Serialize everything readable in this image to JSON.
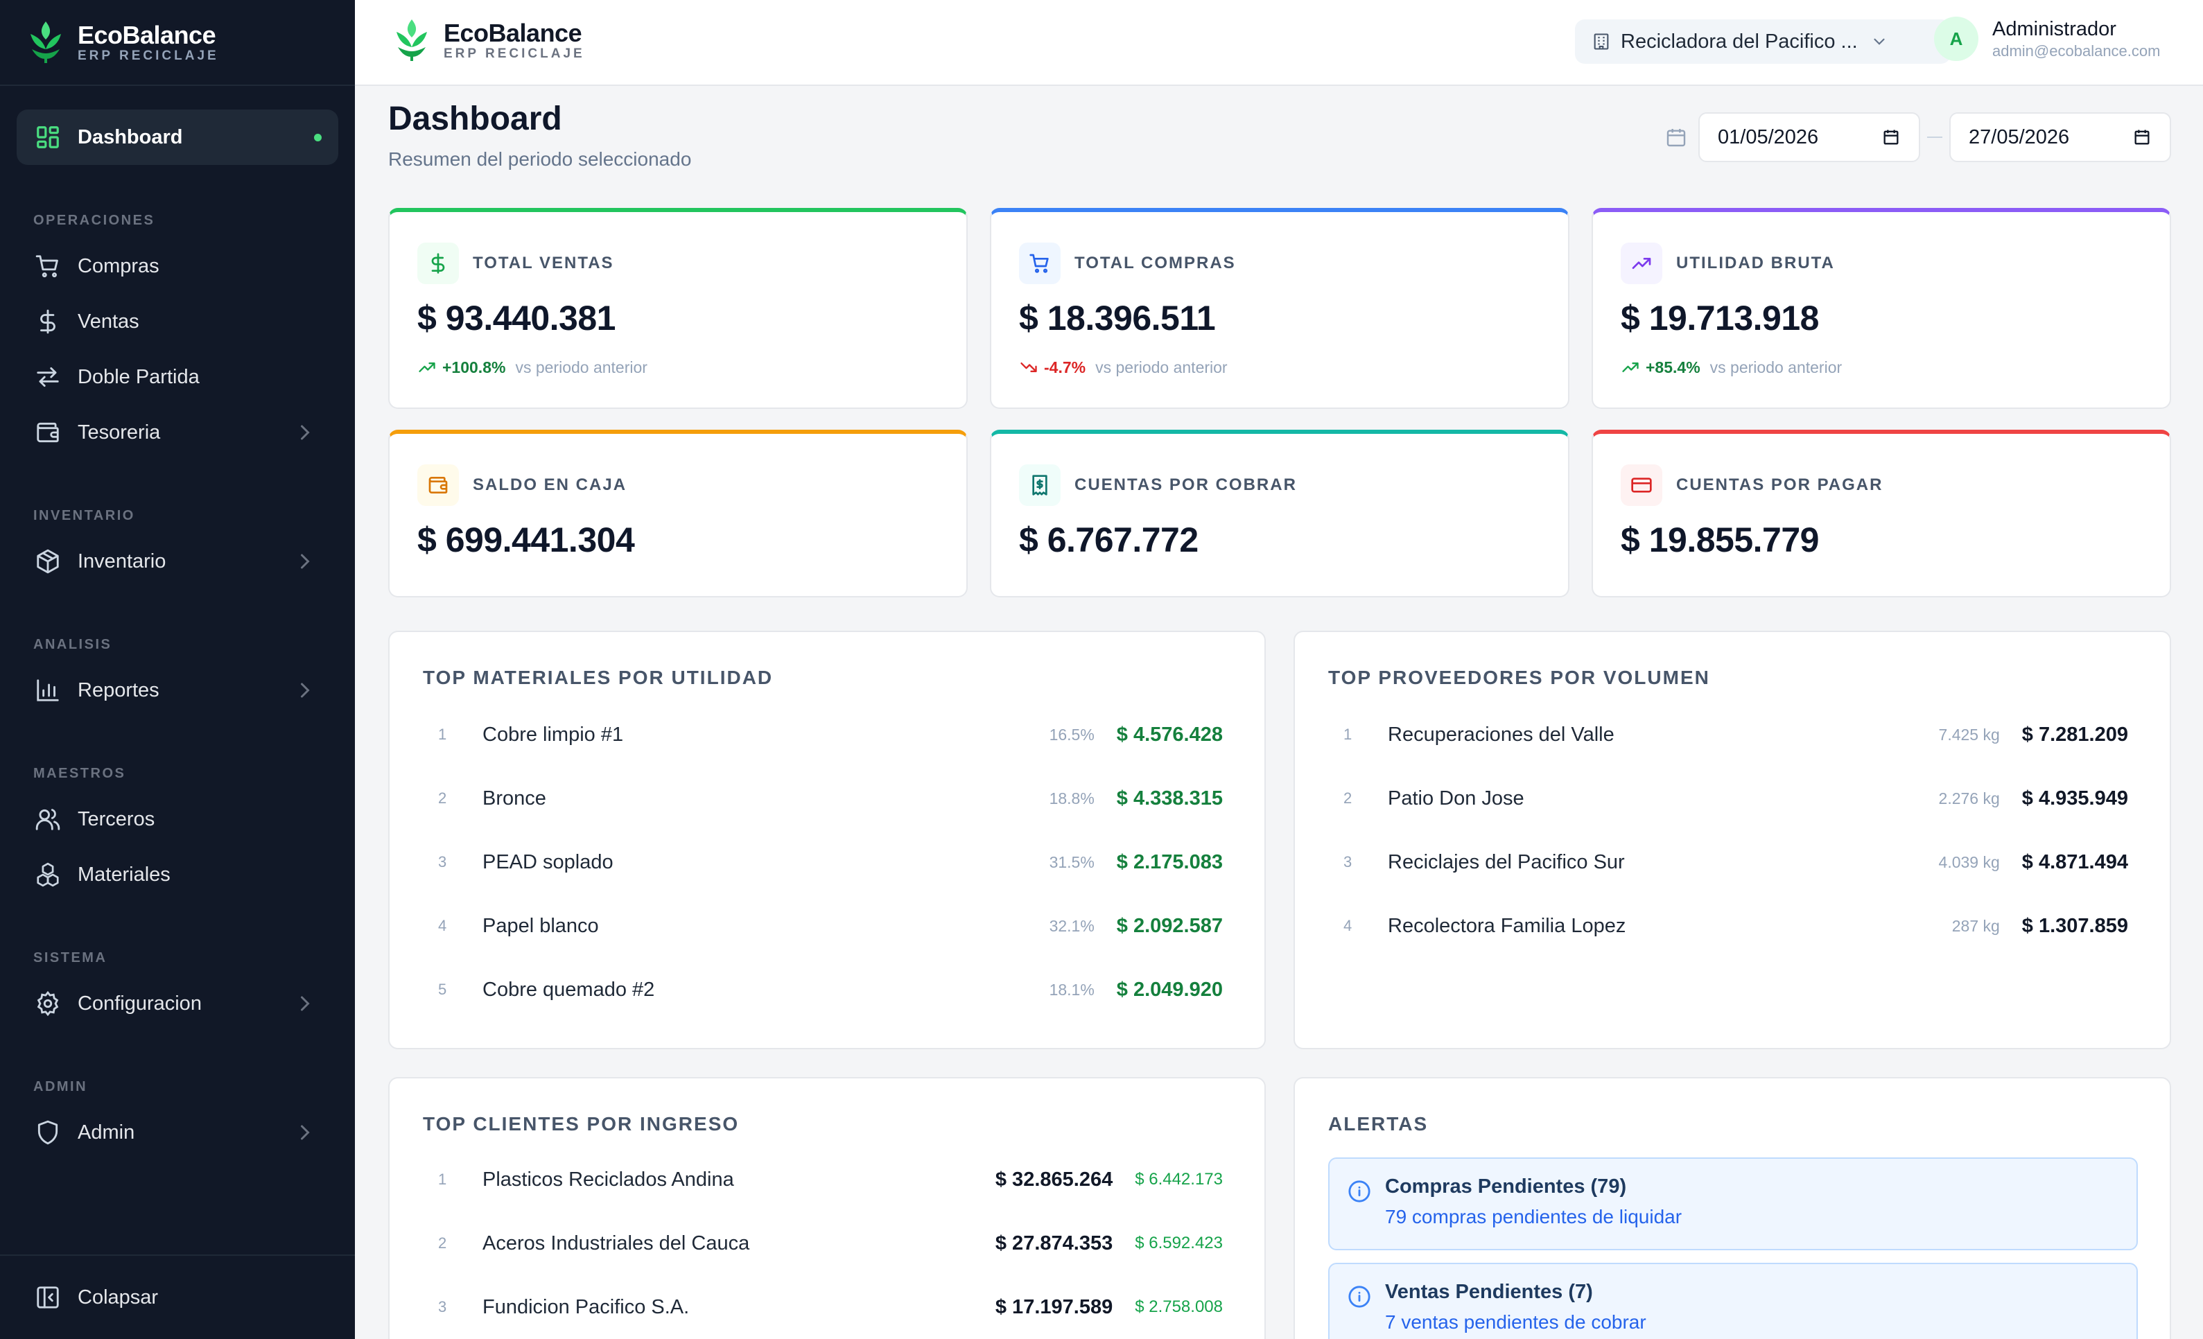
{
  "brand": {
    "name": "EcoBalance",
    "subtitle": "ERP RECICLAJE"
  },
  "sidebar": {
    "dashboard": "Dashboard",
    "sections": {
      "operaciones": "OPERACIONES",
      "inventario": "INVENTARIO",
      "analisis": "ANALISIS",
      "maestros": "MAESTROS",
      "sistema": "SISTEMA",
      "admin": "ADMIN"
    },
    "items": {
      "compras": "Compras",
      "ventas": "Ventas",
      "doble_partida": "Doble Partida",
      "tesoreria": "Tesoreria",
      "inventario": "Inventario",
      "reportes": "Reportes",
      "terceros": "Terceros",
      "materiales": "Materiales",
      "configuracion": "Configuracion",
      "admin": "Admin"
    },
    "collapse": "Colapsar"
  },
  "header": {
    "company": "Recicladora del Pacifico ...",
    "user": {
      "initial": "A",
      "name": "Administrador",
      "email": "admin@ecobalance.com"
    }
  },
  "page": {
    "title": "Dashboard",
    "subtitle": "Resumen del periodo seleccionado",
    "date_from": "01/05/2026",
    "date_to": "27/05/2026"
  },
  "kpis": {
    "ventas": {
      "label": "TOTAL VENTAS",
      "value": "$ 93.440.381",
      "trend": "+100.8%",
      "vs": "vs periodo anterior",
      "color": "#22c55e"
    },
    "compras": {
      "label": "TOTAL COMPRAS",
      "value": "$ 18.396.511",
      "trend": "-4.7%",
      "vs": "vs periodo anterior",
      "color": "#3b82f6"
    },
    "utilidad": {
      "label": "UTILIDAD BRUTA",
      "value": "$ 19.713.918",
      "trend": "+85.4%",
      "vs": "vs periodo anterior",
      "color": "#8b5cf6"
    },
    "caja": {
      "label": "SALDO EN CAJA",
      "value": "$ 699.441.304",
      "color": "#f59e0b"
    },
    "cobrar": {
      "label": "CUENTAS POR COBRAR",
      "value": "$ 6.767.772",
      "color": "#14b8a6"
    },
    "pagar": {
      "label": "CUENTAS POR PAGAR",
      "value": "$ 19.855.779",
      "color": "#ef4444"
    }
  },
  "top_materiales": {
    "title": "TOP MATERIALES POR UTILIDAD",
    "rows": [
      {
        "rank": "1",
        "name": "Cobre limpio #1",
        "pct": "16.5%",
        "value": "$ 4.576.428"
      },
      {
        "rank": "2",
        "name": "Bronce",
        "pct": "18.8%",
        "value": "$ 4.338.315"
      },
      {
        "rank": "3",
        "name": "PEAD soplado",
        "pct": "31.5%",
        "value": "$ 2.175.083"
      },
      {
        "rank": "4",
        "name": "Papel blanco",
        "pct": "32.1%",
        "value": "$ 2.092.587"
      },
      {
        "rank": "5",
        "name": "Cobre quemado #2",
        "pct": "18.1%",
        "value": "$ 2.049.920"
      }
    ]
  },
  "top_proveedores": {
    "title": "TOP PROVEEDORES POR VOLUMEN",
    "rows": [
      {
        "rank": "1",
        "name": "Recuperaciones del Valle",
        "kg": "7.425 kg",
        "value": "$ 7.281.209"
      },
      {
        "rank": "2",
        "name": "Patio Don Jose",
        "kg": "2.276 kg",
        "value": "$ 4.935.949"
      },
      {
        "rank": "3",
        "name": "Reciclajes del Pacifico Sur",
        "kg": "4.039 kg",
        "value": "$ 4.871.494"
      },
      {
        "rank": "4",
        "name": "Recolectora Familia Lopez",
        "kg": "287 kg",
        "value": "$ 1.307.859"
      }
    ]
  },
  "top_clientes": {
    "title": "TOP CLIENTES POR INGRESO",
    "rows": [
      {
        "rank": "1",
        "name": "Plasticos Reciclados Andina",
        "value": "$ 32.865.264",
        "profit": "$ 6.442.173"
      },
      {
        "rank": "2",
        "name": "Aceros Industriales del Cauca",
        "value": "$ 27.874.353",
        "profit": "$ 6.592.423"
      },
      {
        "rank": "3",
        "name": "Fundicion Pacifico S.A.",
        "value": "$ 17.197.589",
        "profit": "$ 2.758.008"
      }
    ]
  },
  "alertas": {
    "title": "ALERTAS",
    "items": [
      {
        "title": "Compras Pendientes (79)",
        "text": "79 compras pendientes de liquidar"
      },
      {
        "title": "Ventas Pendientes (7)",
        "text": "7 ventas pendientes de cobrar"
      }
    ]
  }
}
